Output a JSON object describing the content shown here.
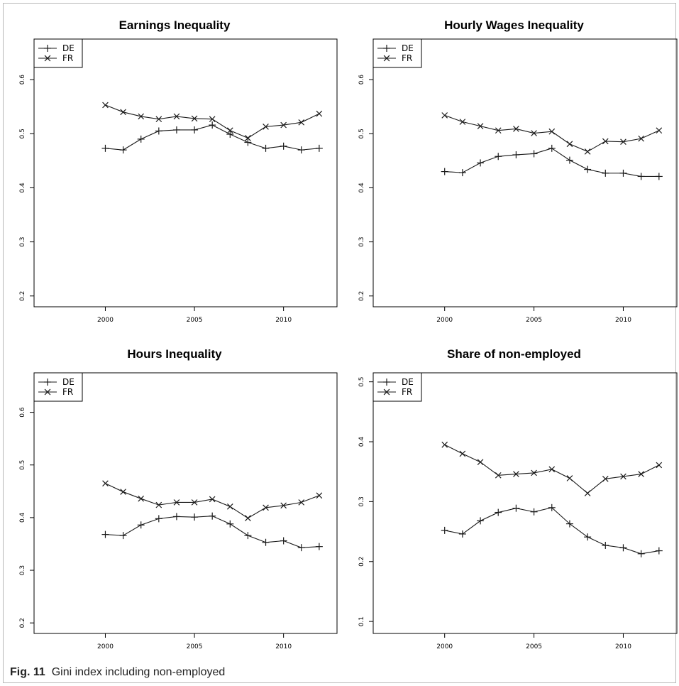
{
  "caption": {
    "label": "Fig. 11",
    "text": "Gini index including non-employed"
  },
  "colors": {
    "line": "#1a1a1a",
    "axis": "#000000",
    "background": "#ffffff"
  },
  "chart_data": [
    {
      "type": "line",
      "title": "Earnings Inequality",
      "xlabel": "",
      "ylabel": "",
      "xlim": [
        1996,
        2013
      ],
      "ylim": [
        0.18,
        0.675
      ],
      "xticks": [
        "2000",
        "2005",
        "2010"
      ],
      "yticks": [
        "0.2",
        "0.3",
        "0.4",
        "0.5",
        "0.6"
      ],
      "grid": false,
      "legend_position": "top-left",
      "x": [
        2000,
        2001,
        2002,
        2003,
        2004,
        2005,
        2006,
        2007,
        2008,
        2009,
        2010,
        2011,
        2012
      ],
      "series": [
        {
          "name": "DE",
          "marker": "plus",
          "values": [
            0.473,
            0.47,
            0.49,
            0.505,
            0.507,
            0.507,
            0.516,
            0.499,
            0.484,
            0.473,
            0.477,
            0.47,
            0.473
          ]
        },
        {
          "name": "FR",
          "marker": "cross",
          "values": [
            0.553,
            0.54,
            0.532,
            0.527,
            0.532,
            0.528,
            0.527,
            0.506,
            0.492,
            0.513,
            0.516,
            0.521,
            0.537
          ]
        }
      ]
    },
    {
      "type": "line",
      "title": "Hourly Wages Inequality",
      "xlabel": "",
      "ylabel": "",
      "xlim": [
        1996,
        2013
      ],
      "ylim": [
        0.18,
        0.675
      ],
      "xticks": [
        "2000",
        "2005",
        "2010"
      ],
      "yticks": [
        "0.2",
        "0.3",
        "0.4",
        "0.5",
        "0.6"
      ],
      "grid": false,
      "legend_position": "top-left",
      "x": [
        2000,
        2001,
        2002,
        2003,
        2004,
        2005,
        2006,
        2007,
        2008,
        2009,
        2010,
        2011,
        2012
      ],
      "series": [
        {
          "name": "DE",
          "marker": "plus",
          "values": [
            0.43,
            0.428,
            0.446,
            0.458,
            0.461,
            0.463,
            0.473,
            0.451,
            0.434,
            0.427,
            0.427,
            0.421,
            0.421
          ]
        },
        {
          "name": "FR",
          "marker": "cross",
          "values": [
            0.534,
            0.522,
            0.514,
            0.506,
            0.509,
            0.501,
            0.504,
            0.481,
            0.467,
            0.486,
            0.485,
            0.491,
            0.506
          ]
        }
      ]
    },
    {
      "type": "line",
      "title": "Hours Inequality",
      "xlabel": "",
      "ylabel": "",
      "xlim": [
        1996,
        2013
      ],
      "ylim": [
        0.18,
        0.675
      ],
      "xticks": [
        "2000",
        "2005",
        "2010"
      ],
      "yticks": [
        "0.2",
        "0.3",
        "0.4",
        "0.5",
        "0.6"
      ],
      "grid": false,
      "legend_position": "top-left",
      "x": [
        2000,
        2001,
        2002,
        2003,
        2004,
        2005,
        2006,
        2007,
        2008,
        2009,
        2010,
        2011,
        2012
      ],
      "series": [
        {
          "name": "DE",
          "marker": "plus",
          "values": [
            0.368,
            0.366,
            0.386,
            0.398,
            0.402,
            0.401,
            0.403,
            0.388,
            0.366,
            0.353,
            0.356,
            0.343,
            0.345
          ]
        },
        {
          "name": "FR",
          "marker": "cross",
          "values": [
            0.465,
            0.449,
            0.436,
            0.424,
            0.429,
            0.429,
            0.435,
            0.421,
            0.399,
            0.419,
            0.423,
            0.429,
            0.442
          ]
        }
      ]
    },
    {
      "type": "line",
      "title": "Share of non-employed",
      "xlabel": "",
      "ylabel": "",
      "xlim": [
        1996,
        2013
      ],
      "ylim": [
        0.08,
        0.515
      ],
      "xticks": [
        "2000",
        "2005",
        "2010"
      ],
      "yticks": [
        "0.1",
        "0.2",
        "0.3",
        "0.4",
        "0.5"
      ],
      "grid": false,
      "legend_position": "top-left",
      "x": [
        2000,
        2001,
        2002,
        2003,
        2004,
        2005,
        2006,
        2007,
        2008,
        2009,
        2010,
        2011,
        2012
      ],
      "series": [
        {
          "name": "DE",
          "marker": "plus",
          "values": [
            0.252,
            0.246,
            0.268,
            0.282,
            0.289,
            0.283,
            0.29,
            0.263,
            0.241,
            0.227,
            0.223,
            0.213,
            0.218
          ]
        },
        {
          "name": "FR",
          "marker": "cross",
          "values": [
            0.395,
            0.38,
            0.366,
            0.344,
            0.346,
            0.348,
            0.354,
            0.339,
            0.314,
            0.338,
            0.342,
            0.346,
            0.361
          ]
        }
      ]
    }
  ]
}
